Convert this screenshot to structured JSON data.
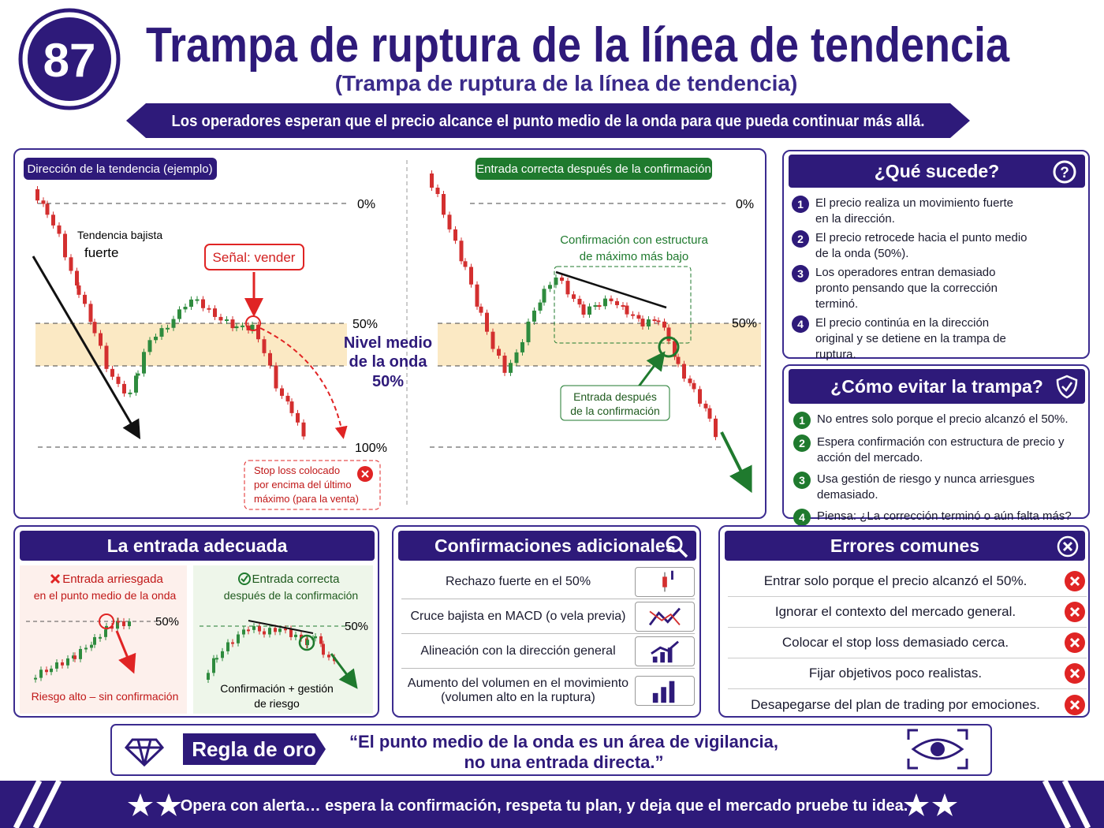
{
  "header": {
    "badge": "87",
    "title": "Trampa de ruptura de la línea de tendencia",
    "subtitle": "(Trampa de ruptura de la línea de tendencia)",
    "banner": "Los operadores esperan que el precio alcance el punto medio de la onda para que pueda continuar más allá."
  },
  "example_chart": {
    "tag": "Dirección de la tendencia (ejemplo)",
    "trend_label": [
      "Tendencia bajista",
      "fuerte"
    ],
    "signal": "Señal: vender",
    "levels": [
      "0%",
      "50%",
      "100%"
    ],
    "midpoint_note": [
      "Nivel medio",
      "de la onda",
      "50%"
    ],
    "stop_loss": [
      "Stop loss colocado",
      "por encima del último",
      "máximo (para la venta)"
    ]
  },
  "confirmed_chart": {
    "tag": "Entrada correcta después de la confirmación",
    "levels": [
      "0%",
      "50%"
    ],
    "structure_note": [
      "Confirmación con estructura",
      "de máximo más bajo"
    ],
    "entry_note": [
      "Entrada después",
      "de la confirmación"
    ]
  },
  "what_happens": {
    "title": "¿Qué sucede?",
    "items": [
      {
        "num": "1",
        "text": "El precio realiza un movimiento fuerte en la dirección."
      },
      {
        "num": "2",
        "text": "El precio retrocede hacia el punto medio de la onda (50%)."
      },
      {
        "num": "3",
        "text": "Los operadores entran demasiado pronto pensando que la corrección terminó."
      },
      {
        "num": "4",
        "text": "El precio continúa en la dirección original y se detiene en la trampa de ruptura."
      }
    ]
  },
  "avoid_trap": {
    "title": "¿Cómo evitar la trampa?",
    "items": [
      {
        "num": "1",
        "text": "No entres solo porque el precio alcanzó el 50%."
      },
      {
        "num": "2",
        "text": "Espera confirmación con estructura de precio y acción del mercado."
      },
      {
        "num": "3",
        "text": "Usa gestión de riesgo y nunca arriesgues demasiado."
      },
      {
        "num": "4",
        "text": "Piensa: ¿La corrección terminó o aún falta más?"
      }
    ]
  },
  "proper_entry": {
    "title": "La entrada adecuada",
    "risky": {
      "title": [
        "Entrada arriesgada",
        "en el punto medio de la onda"
      ],
      "level": "50%",
      "caption": "Riesgo alto – sin confirmación"
    },
    "correct": {
      "title": [
        "Entrada correcta",
        "después de la confirmación"
      ],
      "level": "50%",
      "caption": [
        "Confirmación + gestión",
        "de riesgo"
      ]
    }
  },
  "extra_confirmations": {
    "title": "Confirmaciones adicionales",
    "items": [
      "Rechazo fuerte en el 50%",
      "Cruce bajista en MACD (o vela previa)",
      "Alineación con la dirección general",
      "Aumento del volumen en el movimiento (volumen alto en la ruptura)"
    ]
  },
  "common_errors": {
    "title": "Errores comunes",
    "items": [
      "Entrar solo porque el precio alcanzó el 50%.",
      "Ignorar el contexto del mercado general.",
      "Colocar el stop loss demasiado cerca.",
      "Fijar objetivos poco realistas.",
      "Desapegarse del plan de trading por emociones."
    ]
  },
  "golden_rule": {
    "label": "Regla de oro",
    "quote": [
      "“El punto medio de la onda es un área de vigilancia,",
      "no una entrada directa.”"
    ]
  },
  "footer": "Opera con alerta… espera la confirmación, respeta tu plan, y deja que el mercado pruebe tu idea."
}
